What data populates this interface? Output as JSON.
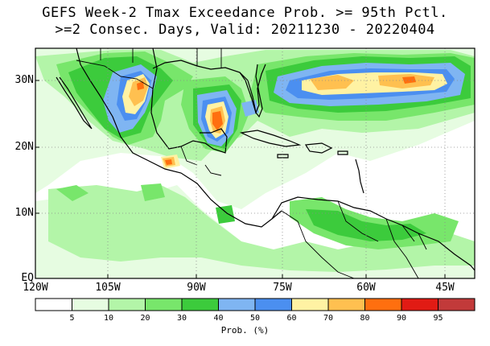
{
  "title_line1": "GEFS Week-2 Tmax Exceedance Prob. >= 95th Pctl.",
  "title_line2": ">=2 Consec. Days, Valid: 20211230 - 20220404",
  "lat_labels": [
    "30N",
    "20N",
    "10N",
    "EQ"
  ],
  "lon_labels": [
    "120W",
    "105W",
    "90W",
    "75W",
    "60W",
    "45W"
  ],
  "legend": {
    "colors": [
      "#ffffff",
      "#e6fce1",
      "#b3f5a8",
      "#78e66b",
      "#3ccb3c",
      "#7fb5f2",
      "#4b8ff0",
      "#fff2a3",
      "#ffc050",
      "#ff6f0f",
      "#e11b14",
      "#c23a3a"
    ],
    "ticks": [
      "5",
      "10",
      "20",
      "30",
      "40",
      "50",
      "60",
      "70",
      "80",
      "90",
      "95"
    ],
    "unit": "Prob. (%)"
  },
  "colors": {
    "ocean": "#ffffff",
    "frame": "#000000",
    "grid": "#8a8a8a"
  }
}
